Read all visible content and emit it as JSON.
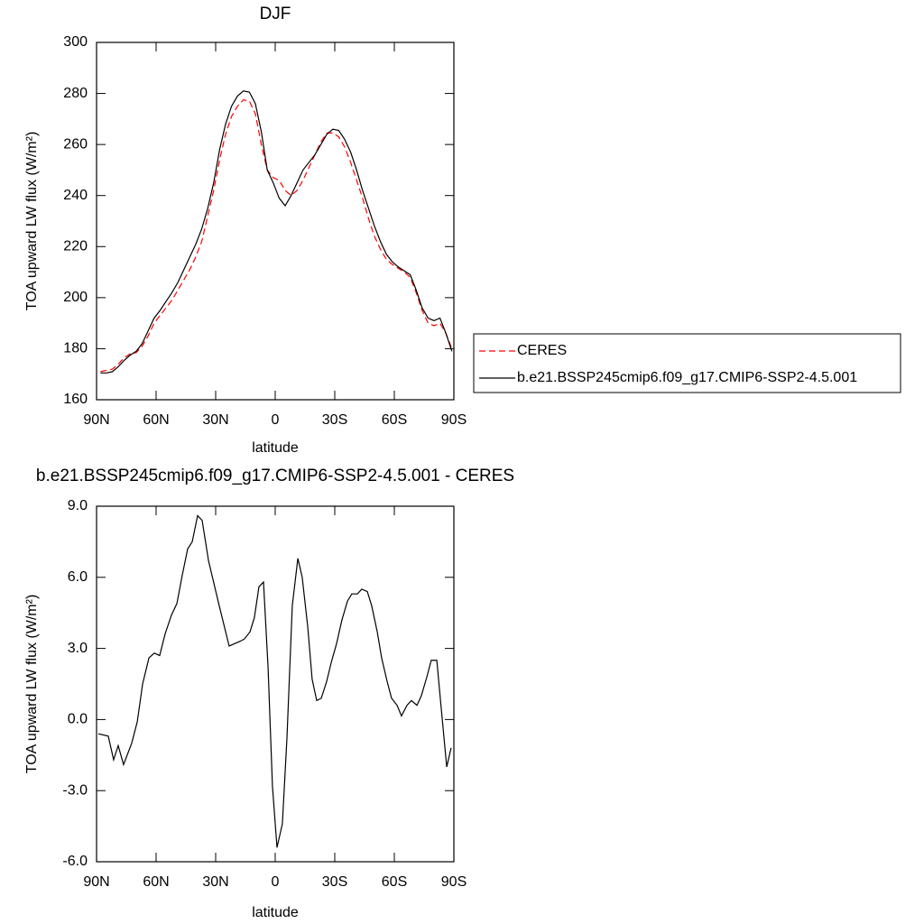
{
  "chart_data": [
    {
      "type": "line",
      "title": "DJF",
      "x_label": "latitude",
      "y_label": "TOA upward LW flux (W/m²)",
      "x": [
        88,
        85,
        82,
        79,
        76,
        73,
        70,
        67,
        64,
        61,
        58,
        55,
        52,
        49,
        46,
        43,
        40,
        37,
        34,
        31,
        28,
        25,
        22,
        19,
        16,
        13,
        10,
        7,
        4,
        1,
        -2,
        -5,
        -8,
        -11,
        -14,
        -17,
        -20,
        -23,
        -26,
        -29,
        -32,
        -35,
        -38,
        -41,
        -44,
        -47,
        -50,
        -53,
        -56,
        -59,
        -62,
        -65,
        -68,
        -71,
        -74,
        -77,
        -80,
        -83,
        -86,
        -89
      ],
      "series": [
        {
          "name": "CERES",
          "color": "#ff0000",
          "dashed": true,
          "values": [
            171,
            171.5,
            172,
            174,
            176.5,
            178,
            178.5,
            181,
            185,
            190,
            193,
            196,
            199,
            203,
            207,
            211,
            216,
            222,
            232,
            242,
            254,
            264,
            271,
            275,
            277.5,
            277,
            272,
            260,
            250,
            247,
            246,
            242,
            240,
            242,
            246,
            251,
            256,
            261,
            264.5,
            264.5,
            263,
            259,
            253,
            246,
            239,
            231,
            224,
            219,
            215,
            213,
            211.5,
            210,
            208,
            202,
            195,
            190,
            189,
            190,
            186,
            180
          ]
        },
        {
          "name": "b.e21.BSSP245cmip6.f09_g17.CMIP6-SSP2-4.5.001",
          "color": "#000000",
          "dashed": false,
          "values": [
            170.5,
            170.5,
            171,
            173,
            175.5,
            177.5,
            179,
            182,
            187,
            192,
            195,
            198.5,
            202,
            206,
            211,
            216,
            221,
            227,
            235,
            245,
            258,
            268,
            275,
            279,
            281,
            280.5,
            276,
            265,
            250,
            245,
            239,
            236,
            240,
            245,
            250,
            253,
            256,
            260,
            264,
            266,
            265.5,
            262,
            257,
            250,
            242,
            235,
            228,
            222,
            217,
            214,
            212,
            210.5,
            209,
            203,
            196,
            192,
            191,
            192,
            186,
            179
          ]
        }
      ],
      "xlim": [
        90,
        -90
      ],
      "xticks": [
        {
          "value": 90,
          "label": "90N"
        },
        {
          "value": 60,
          "label": "60N"
        },
        {
          "value": 30,
          "label": "30N"
        },
        0,
        {
          "value": -30,
          "label": "30S"
        },
        {
          "value": -60,
          "label": "60S"
        },
        {
          "value": -90,
          "label": "90S"
        }
      ],
      "ylim": [
        160,
        300
      ],
      "yticks": [
        160,
        180,
        200,
        220,
        240,
        260,
        280,
        300
      ],
      "legend": "right"
    },
    {
      "type": "line",
      "title": "b.e21.BSSP245cmip6.f09_g17.CMIP6-SSP2-4.5.001 - CERES",
      "x_label": "latitude",
      "y_label": "TOA upward LW flux (W/m²)",
      "x": [
        89.1,
        84.1,
        81.4,
        79.1,
        76.4,
        72.3,
        69.5,
        66.8,
        63.6,
        60.9,
        58.2,
        55.5,
        52.3,
        49.5,
        46.8,
        44.1,
        41.8,
        39.1,
        36.8,
        33.6,
        28.2,
        23.2,
        20.5,
        17.7,
        15.5,
        12.7,
        10.5,
        8.2,
        5.9,
        3.6,
        1.4,
        -0.9,
        -3.6,
        -5.9,
        -8.6,
        -11.4,
        -13.6,
        -16.4,
        -18.6,
        -20.9,
        -23.2,
        -25.9,
        -28.2,
        -30.9,
        -33.6,
        -36.4,
        -38.6,
        -41.4,
        -43.6,
        -46.4,
        -48.6,
        -51.4,
        -53.6,
        -56.4,
        -58.6,
        -61.4,
        -63.6,
        -66.4,
        -68.6,
        -71.4,
        -73.6,
        -76.4,
        -78.6,
        -81.4,
        -83.6,
        -86.4,
        -88.6
      ],
      "values": [
        -0.6,
        -0.7,
        -1.7,
        -1.1,
        -1.9,
        -1.0,
        -0.1,
        1.5,
        2.6,
        2.8,
        2.7,
        3.6,
        4.4,
        4.9,
        6.1,
        7.2,
        7.5,
        8.6,
        8.4,
        6.7,
        4.8,
        3.1,
        3.2,
        3.3,
        3.4,
        3.7,
        4.3,
        5.6,
        5.8,
        2.2,
        -2.8,
        -5.4,
        -4.4,
        -0.8,
        4.8,
        6.8,
        6.0,
        3.9,
        1.7,
        0.8,
        0.9,
        1.6,
        2.4,
        3.2,
        4.2,
        5.0,
        5.3,
        5.3,
        5.5,
        5.4,
        4.8,
        3.7,
        2.6,
        1.6,
        0.9,
        0.6,
        0.15,
        0.6,
        0.8,
        0.6,
        1.0,
        1.8,
        2.5,
        2.5,
        0.5,
        -2.0,
        -1.2
      ],
      "color": "#000000",
      "xlim": [
        90,
        -90
      ],
      "xticks": [
        {
          "value": 90,
          "label": "90N"
        },
        {
          "value": 60,
          "label": "60N"
        },
        {
          "value": 30,
          "label": "30N"
        },
        0,
        {
          "value": -30,
          "label": "30S"
        },
        {
          "value": -60,
          "label": "60S"
        },
        {
          "value": -90,
          "label": "90S"
        }
      ],
      "ylim": [
        -6,
        9
      ],
      "yticks": [
        {
          "value": -6,
          "label": "-6.0"
        },
        {
          "value": -3,
          "label": "-3.0"
        },
        {
          "value": 0,
          "label": "0.0"
        },
        {
          "value": 3,
          "label": "3.0"
        },
        {
          "value": 6,
          "label": "6.0"
        },
        {
          "value": 9,
          "label": "9.0"
        }
      ]
    }
  ]
}
